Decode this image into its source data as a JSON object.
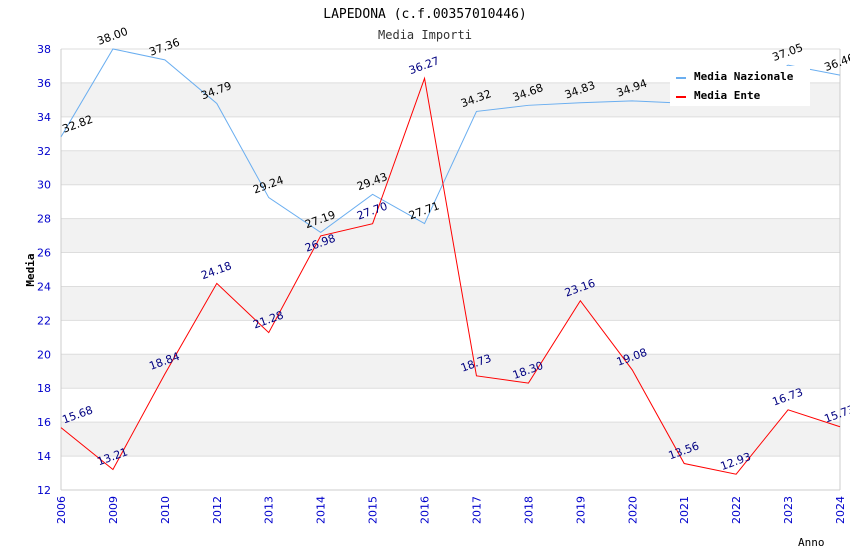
{
  "chart_data": {
    "type": "line",
    "title": "LAPEDONA (c.f.00357010446)",
    "subtitle": "Media Importi",
    "xlabel": "Anno",
    "ylabel": "Media",
    "ylim": [
      12,
      38
    ],
    "yticks": [
      12,
      14,
      16,
      18,
      20,
      22,
      24,
      26,
      28,
      30,
      32,
      34,
      36,
      38
    ],
    "grid": true,
    "legend_position": "top-right",
    "categories": [
      "2006",
      "2009",
      "2010",
      "2012",
      "2013",
      "2014",
      "2015",
      "2016",
      "2017",
      "2018",
      "2019",
      "2020",
      "2021",
      "2022",
      "2023",
      "2024"
    ],
    "series": [
      {
        "name": "Media Nazionale",
        "color": "#6aaef0",
        "label_color": "#000000",
        "values": [
          32.82,
          38.0,
          37.36,
          34.79,
          29.24,
          27.19,
          29.43,
          27.71,
          34.32,
          34.68,
          34.83,
          34.94,
          34.8,
          34.9,
          37.05,
          36.46
        ],
        "labels": [
          "32.82",
          "38.00",
          "37.36",
          "34.79",
          "29.24",
          "27.19",
          "29.43",
          "27.71",
          "34.32",
          "34.68",
          "34.83",
          "34.94",
          null,
          null,
          "37.05",
          "36.46"
        ]
      },
      {
        "name": "Media Ente",
        "color": "#ff0000",
        "label_color": "#000080",
        "values": [
          15.68,
          13.21,
          18.84,
          24.18,
          21.28,
          26.98,
          27.7,
          36.27,
          18.73,
          18.3,
          23.16,
          19.08,
          13.56,
          12.93,
          16.73,
          15.73
        ],
        "labels": [
          "15.68",
          "13.21",
          "18.84",
          "24.18",
          "21.28",
          "26.98",
          "27.70",
          "36.27",
          "18.73",
          "18.30",
          "23.16",
          "19.08",
          "13.56",
          "12.93",
          "16.73",
          "15.73"
        ]
      }
    ]
  }
}
